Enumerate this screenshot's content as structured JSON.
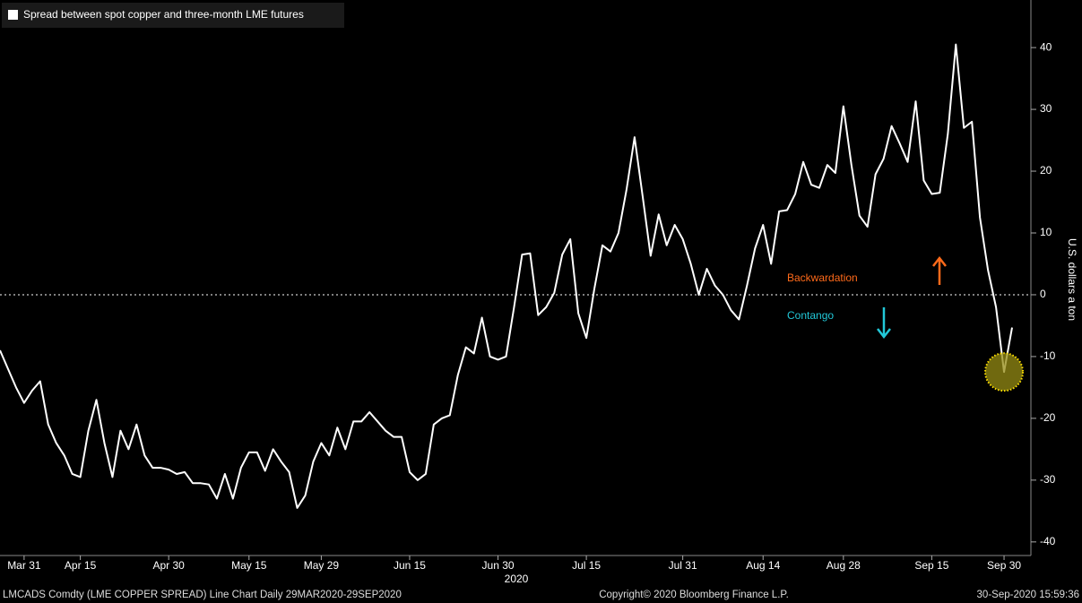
{
  "chart_data": {
    "type": "line",
    "legend_title": "Spread between spot copper and three-month LME futures",
    "y_axis_label": "U.S. dollars a ton",
    "year_label": "2020",
    "annotations": [
      "Backwardation",
      "Contango"
    ],
    "footer_left": "LMCADS Comdty (LME COPPER SPREAD) Line Chart  Daily 29MAR2020-29SEP2020",
    "footer_center": "Copyright© 2020 Bloomberg Finance L.P.",
    "footer_right": "30-Sep-2020 15:59:36",
    "categories": [
      null,
      null,
      null,
      "Mar 31",
      null,
      null,
      null,
      null,
      null,
      null,
      "Apr 15",
      null,
      null,
      null,
      null,
      null,
      null,
      null,
      null,
      null,
      null,
      "Apr 30",
      null,
      null,
      null,
      null,
      null,
      null,
      null,
      null,
      null,
      "May 15",
      null,
      null,
      null,
      null,
      null,
      null,
      null,
      null,
      "May 29",
      null,
      null,
      null,
      null,
      null,
      null,
      null,
      null,
      null,
      null,
      "Jun 15",
      null,
      null,
      null,
      null,
      null,
      null,
      null,
      null,
      null,
      null,
      "Jun 30",
      null,
      null,
      null,
      null,
      null,
      null,
      null,
      null,
      null,
      null,
      "Jul 15",
      null,
      null,
      null,
      null,
      null,
      null,
      null,
      null,
      null,
      null,
      null,
      "Jul 31",
      null,
      null,
      null,
      null,
      null,
      null,
      null,
      null,
      null,
      "Aug 14",
      null,
      null,
      null,
      null,
      null,
      null,
      null,
      null,
      null,
      "Aug 28",
      null,
      null,
      null,
      null,
      null,
      null,
      null,
      null,
      null,
      null,
      "Sep 15",
      null,
      null,
      null,
      null,
      null,
      null,
      null,
      null,
      "Sep 30",
      null
    ],
    "series": [
      {
        "name": "Spread between spot copper and three-month LME futures",
        "color": "#ffffff",
        "values": [
          -9,
          -12,
          -15,
          -17.5,
          -15.5,
          -14,
          -21,
          -24,
          -26,
          -29,
          -29.5,
          -22,
          -17,
          -24,
          -29.5,
          -22,
          -25,
          -21,
          -26,
          -28,
          -28,
          -28.3,
          -29,
          -28.7,
          -30.5,
          -30.5,
          -30.7,
          -33,
          -29,
          -33,
          -28,
          -25.5,
          -25.5,
          -28.5,
          -25,
          -27,
          -28.7,
          -34.5,
          -32.5,
          -27,
          -24,
          -26,
          -21.5,
          -25,
          -20.5,
          -20.5,
          -19,
          -20.5,
          -22,
          -23,
          -23,
          -28.7,
          -30,
          -29,
          -21,
          -20,
          -19.5,
          -13,
          -8.5,
          -9.5,
          -3.7,
          -10,
          -10.5,
          -10,
          -2,
          6.5,
          6.7,
          -3.3,
          -2,
          0.3,
          6.5,
          9,
          -3,
          -7,
          1,
          8,
          7,
          10,
          17,
          25.5,
          16,
          6.3,
          13,
          8,
          11.3,
          9,
          5,
          0,
          4.2,
          1.5,
          0,
          -2.5,
          -4,
          1.5,
          7.5,
          11.3,
          5,
          13.5,
          13.7,
          16.3,
          21.5,
          17.8,
          17.3,
          21,
          19.7,
          30.5,
          21,
          12.8,
          11,
          19.5,
          22,
          27.3,
          24.5,
          21.5,
          31.3,
          18.5,
          16.3,
          16.5,
          26,
          40.5,
          27,
          28,
          12.5,
          4,
          -2,
          -12.5,
          -5.3
        ]
      }
    ],
    "highlight_index": 125,
    "ylim": [
      -42.2,
      47.7
    ],
    "yticks": [
      -40,
      -30,
      -20,
      -10,
      0,
      10,
      20,
      30,
      40
    ],
    "zero_line": true
  }
}
